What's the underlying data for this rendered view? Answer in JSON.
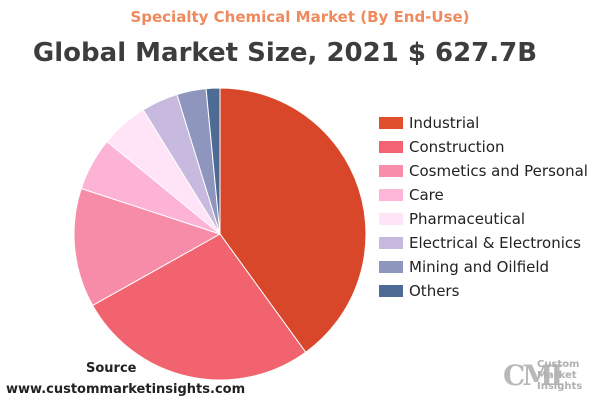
{
  "chart_data": {
    "type": "pie",
    "subtitle": "Specialty Chemical Market (By End-Use)",
    "title": "Global Market Size, 2021 $ 627.7B",
    "slices": [
      {
        "label": "Industrial",
        "value": 39.5,
        "color": "#d9472b"
      },
      {
        "label": "Construction",
        "value": 26.5,
        "color": "#f0636f"
      },
      {
        "label": "Cosmetics and Personal Care",
        "value": 13.0,
        "color": "#f78ca8"
      },
      {
        "label": "Pharmaceutical",
        "value": 5.8,
        "color": "#fdb3d6"
      },
      {
        "label": "",
        "value": 5.2,
        "color": "#ffe3f7"
      },
      {
        "label": "Electrical & Electronics",
        "value": 4.0,
        "color": "#c8b9de"
      },
      {
        "label": "Mining and Oilfield",
        "value": 3.2,
        "color": "#8e96bd"
      },
      {
        "label": "Others",
        "value": 1.5,
        "color": "#4d6b94"
      }
    ],
    "legend": [
      {
        "text": "Industrial",
        "color": "#e0502c"
      },
      {
        "text": "Construction",
        "color": "#f26471"
      },
      {
        "text": "Cosmetics and Personal",
        "color": "#f78cab"
      },
      {
        "text": "Care",
        "color": "#fdb5d8"
      },
      {
        "text": "Pharmaceutical",
        "color": "#ffe3f7"
      },
      {
        "text": "Electrical & Electronics",
        "color": "#c8b9de"
      },
      {
        "text": "Mining and Oilfield",
        "color": "#8e96bd"
      },
      {
        "text": "Others",
        "color": "#4d6b94"
      }
    ],
    "legend_position": "right"
  },
  "footer": {
    "source_label": "Source",
    "source_url": "www.custommarketinsights.com"
  },
  "logo": {
    "mark": "CMI",
    "lines": [
      "Custom",
      "Market",
      "Insights"
    ]
  }
}
